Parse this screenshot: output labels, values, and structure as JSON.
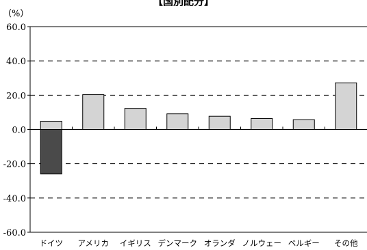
{
  "chart_data": {
    "type": "bar",
    "title": "【国別配分】",
    "unit_label": "（%）",
    "categories": [
      "ドイツ",
      "アメリカ",
      "イギリス",
      "デンマーク",
      "オランダ",
      "ノルウェー",
      "ベルギー",
      "その他"
    ],
    "values": [
      4.8,
      20.3,
      12.3,
      9.1,
      7.7,
      6.4,
      5.7,
      27.2
    ],
    "negative_values": [
      -26.0,
      null,
      null,
      null,
      null,
      null,
      null,
      null
    ],
    "ylim": [
      -60,
      60
    ],
    "yticks": [
      60,
      40,
      20,
      0,
      -20,
      -40,
      -60
    ],
    "ytick_labels": [
      "60.0",
      "40.0",
      "20.0",
      "0.0",
      "-20.0",
      "-40.0",
      "-60.0"
    ],
    "grid": "dashed-horizontal",
    "colors": {
      "positive_bar": "#d4d4d4",
      "negative_bar": "#4a4a4a",
      "bar_outline": "#000000",
      "grid": "#000000"
    }
  }
}
